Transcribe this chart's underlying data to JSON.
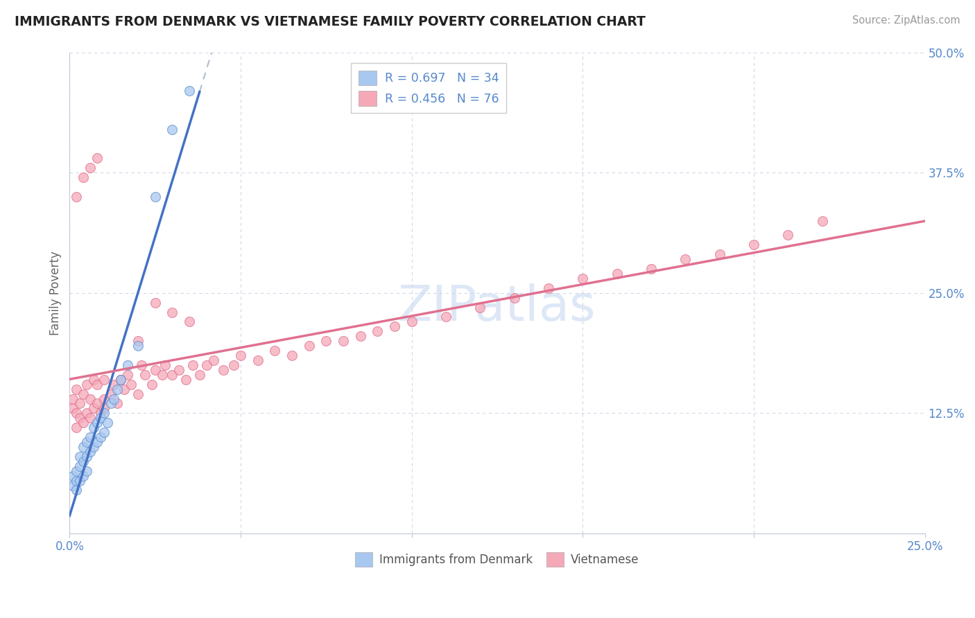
{
  "title": "IMMIGRANTS FROM DENMARK VS VIETNAMESE FAMILY POVERTY CORRELATION CHART",
  "source": "Source: ZipAtlas.com",
  "ylabel": "Family Poverty",
  "legend_label_1": "Immigrants from Denmark",
  "legend_label_2": "Vietnamese",
  "R1": 0.697,
  "N1": 34,
  "R2": 0.456,
  "N2": 76,
  "color1": "#a8c8f0",
  "color1_edge": "#6090d0",
  "color1_line": "#4472c4",
  "color2": "#f5a8b8",
  "color2_edge": "#e07090",
  "color2_line": "#e07090",
  "bg_color": "#ffffff",
  "grid_color": "#d0d8e8",
  "title_color": "#222222",
  "label_color": "#5588cc",
  "ylabel_color": "#666666",
  "source_color": "#999999",
  "xlim": [
    0.0,
    0.25
  ],
  "ylim": [
    0.0,
    0.5
  ],
  "xticks": [
    0.0,
    0.05,
    0.1,
    0.15,
    0.2,
    0.25
  ],
  "yticks": [
    0.0,
    0.125,
    0.25,
    0.375,
    0.5
  ],
  "ytick_labels": [
    "",
    "12.5%",
    "25.0%",
    "37.5%",
    "50.0%"
  ],
  "xtick_labels": [
    "0.0%",
    "",
    "",
    "",
    "",
    "25.0%"
  ],
  "dk_x": [
    0.001,
    0.001,
    0.002,
    0.002,
    0.002,
    0.003,
    0.003,
    0.003,
    0.004,
    0.004,
    0.004,
    0.005,
    0.005,
    0.005,
    0.006,
    0.006,
    0.007,
    0.007,
    0.008,
    0.008,
    0.009,
    0.009,
    0.01,
    0.01,
    0.011,
    0.012,
    0.013,
    0.014,
    0.015,
    0.017,
    0.02,
    0.025,
    0.03,
    0.035
  ],
  "dk_y": [
    0.05,
    0.06,
    0.045,
    0.055,
    0.065,
    0.055,
    0.07,
    0.08,
    0.06,
    0.075,
    0.09,
    0.065,
    0.08,
    0.095,
    0.085,
    0.1,
    0.09,
    0.11,
    0.095,
    0.115,
    0.1,
    0.12,
    0.105,
    0.125,
    0.115,
    0.135,
    0.14,
    0.15,
    0.16,
    0.175,
    0.195,
    0.35,
    0.42,
    0.46
  ],
  "vn_x": [
    0.001,
    0.001,
    0.002,
    0.002,
    0.002,
    0.003,
    0.003,
    0.004,
    0.004,
    0.005,
    0.005,
    0.006,
    0.006,
    0.007,
    0.007,
    0.008,
    0.008,
    0.009,
    0.01,
    0.01,
    0.012,
    0.013,
    0.014,
    0.015,
    0.016,
    0.017,
    0.018,
    0.02,
    0.021,
    0.022,
    0.024,
    0.025,
    0.027,
    0.028,
    0.03,
    0.032,
    0.034,
    0.036,
    0.038,
    0.04,
    0.042,
    0.045,
    0.048,
    0.05,
    0.055,
    0.06,
    0.065,
    0.07,
    0.075,
    0.08,
    0.085,
    0.09,
    0.095,
    0.1,
    0.11,
    0.12,
    0.13,
    0.14,
    0.15,
    0.16,
    0.17,
    0.18,
    0.19,
    0.2,
    0.21,
    0.22,
    0.002,
    0.004,
    0.006,
    0.008,
    0.01,
    0.015,
    0.02,
    0.025,
    0.03,
    0.035
  ],
  "vn_y": [
    0.13,
    0.14,
    0.11,
    0.15,
    0.125,
    0.12,
    0.135,
    0.115,
    0.145,
    0.125,
    0.155,
    0.12,
    0.14,
    0.13,
    0.16,
    0.135,
    0.155,
    0.125,
    0.14,
    0.16,
    0.145,
    0.155,
    0.135,
    0.16,
    0.15,
    0.165,
    0.155,
    0.145,
    0.175,
    0.165,
    0.155,
    0.17,
    0.165,
    0.175,
    0.165,
    0.17,
    0.16,
    0.175,
    0.165,
    0.175,
    0.18,
    0.17,
    0.175,
    0.185,
    0.18,
    0.19,
    0.185,
    0.195,
    0.2,
    0.2,
    0.205,
    0.21,
    0.215,
    0.22,
    0.225,
    0.235,
    0.245,
    0.255,
    0.265,
    0.27,
    0.275,
    0.285,
    0.29,
    0.3,
    0.31,
    0.325,
    0.35,
    0.37,
    0.38,
    0.39,
    0.13,
    0.16,
    0.2,
    0.24,
    0.23,
    0.22
  ],
  "watermark": "ZIPatlas",
  "watermark_color": "#c8d8f0"
}
